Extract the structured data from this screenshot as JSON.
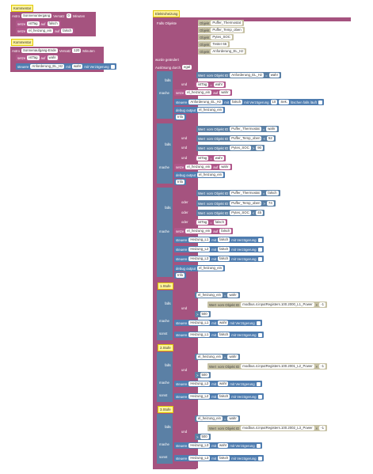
{
  "comments": [
    "Kommentar",
    "Kommentar",
    "Elektroheizung",
    "1.Stufe",
    "2.Stufe",
    "3.Stufe"
  ],
  "labels": [
    "falls",
    "und",
    "mache",
    "falls",
    "und",
    "und",
    "und",
    "mache",
    "falls",
    "oder",
    "oder",
    "oder",
    "mache",
    "falls",
    "und",
    "mache",
    "sonst",
    "falls",
    "und",
    "mache",
    "sonst",
    "falls",
    "und",
    "mache",
    "sonst"
  ],
  "rows": [
    [
      "Astro",
      "Sonnenuntergang",
      "Versatz",
      "0",
      "Minuten"
    ],
    [
      "setze",
      "istTag",
      "auf",
      "falsch"
    ],
    [
      "setze",
      "el_heizung_ein",
      "auf",
      "falsch"
    ],
    [
      "Astro",
      "Sonnenaufgang-Ende",
      "Versatz",
      "120",
      "Minuten"
    ],
    [
      "setze",
      "istTag",
      "auf",
      "wahr"
    ],
    [
      "steuere",
      "Anforderung_EL_Hz",
      "mit",
      "wahr",
      "mit Verzögerung"
    ],
    [
      "Falls Objekte"
    ],
    [
      "Objekt",
      "Puffer_Thermostat"
    ],
    [
      "Objekt",
      "Puffer_Temp_oben"
    ],
    [
      "Objekt",
      "Pytes_SOC"
    ],
    [
      "Objekt",
      "Tester 66"
    ],
    [
      "Objekt",
      "Anforderung_EL_Hz"
    ],
    [
      "wurde geändert"
    ],
    [
      "Auslösung durch",
      "egal"
    ],
    [
      "Wert",
      "vom Objekt ID",
      "Anforderung_EL_Hz",
      "=",
      "wahr"
    ],
    [
      "istTag",
      "=",
      "wahr"
    ],
    [
      "setze",
      "el_heizung_ein",
      "auf",
      "wahr"
    ],
    [
      "steuere",
      "Anforderung_EL_Hz",
      "mit",
      "falsch",
      "mit Verzögerung",
      "10",
      "Sek.",
      "löschen falls läuft"
    ],
    [
      "debug output",
      "el_heizung_ein"
    ],
    [
      "Info"
    ],
    [
      "Wert",
      "vom Objekt ID",
      "Puffer_Thermostat",
      "=",
      "wahr"
    ],
    [
      "Wert",
      "vom Objekt ID",
      "Puffer_Temp_oben",
      "<",
      "52"
    ],
    [
      "Wert",
      "vom Objekt ID",
      "Pytes_SOC",
      ">",
      "90"
    ],
    [
      "istTag",
      "=",
      "wahr"
    ],
    [
      "setze",
      "el_heizung_ein",
      "auf",
      "wahr"
    ],
    [
      "debug output",
      "el_heizung_ein"
    ],
    [
      "Info"
    ],
    [
      "Wert",
      "vom Objekt ID",
      "Puffer_Thermostat",
      "=",
      "falsch"
    ],
    [
      "Wert",
      "vom Objekt ID",
      "Puffer_Temp_oben",
      ">",
      "74"
    ],
    [
      "Wert",
      "vom Objekt ID",
      "Pytes_SOC",
      "<",
      "45"
    ],
    [
      "istTag",
      "=",
      "falsch"
    ],
    [
      "setze",
      "el_heizung_ein",
      "auf",
      "falsch"
    ],
    [
      "steuere",
      "Heizung_L1",
      "mit",
      "falsch",
      "mit Verzögerung"
    ],
    [
      "steuere",
      "Heizung_L2",
      "mit",
      "falsch",
      "mit Verzögerung"
    ],
    [
      "steuere",
      "Heizung_L3",
      "mit",
      "falsch",
      "mit Verzögerung"
    ],
    [
      "debug output",
      "el_heizung_ein"
    ],
    [
      "Info"
    ],
    [
      "el_heizung_ein",
      "=",
      "wahr"
    ],
    [
      "Wert",
      "vom Objekt ID",
      "modbus.4.inputRegisters.100.2000_L1_Power",
      "×",
      "-1"
    ],
    [
      ">",
      "500"
    ],
    [
      "steuere",
      "Heizung_L1",
      "mit",
      "wahr",
      "mit Verzögerung"
    ],
    [
      "steuere",
      "Heizung_L1",
      "mit",
      "falsch",
      "mit Verzögerung"
    ],
    [
      "el_heizung_ein",
      "=",
      "wahr"
    ],
    [
      "Wert",
      "vom Objekt ID",
      "modbus.4.inputRegisters.100.2001_L2_Power",
      "×",
      "-1"
    ],
    [
      ">",
      "500"
    ],
    [
      "steuere",
      "Heizung_L2",
      "mit",
      "wahr",
      "mit Verzögerung"
    ],
    [
      "steuere",
      "Heizung_L2",
      "mit",
      "falsch",
      "mit Verzögerung"
    ],
    [
      "el_heizung_ein",
      "=",
      "wahr"
    ],
    [
      "Wert",
      "vom Objekt ID",
      "modbus.4.inputRegisters.100.2002_L3_Power",
      "×",
      "-1"
    ],
    [
      ">",
      "500"
    ],
    [
      "steuere",
      "Heizung_L3",
      "mit",
      "wahr",
      "mit Verzögerung"
    ],
    [
      "steuere",
      "Heizung_L3",
      "mit",
      "falsch",
      "mit Verzögerung"
    ]
  ]
}
